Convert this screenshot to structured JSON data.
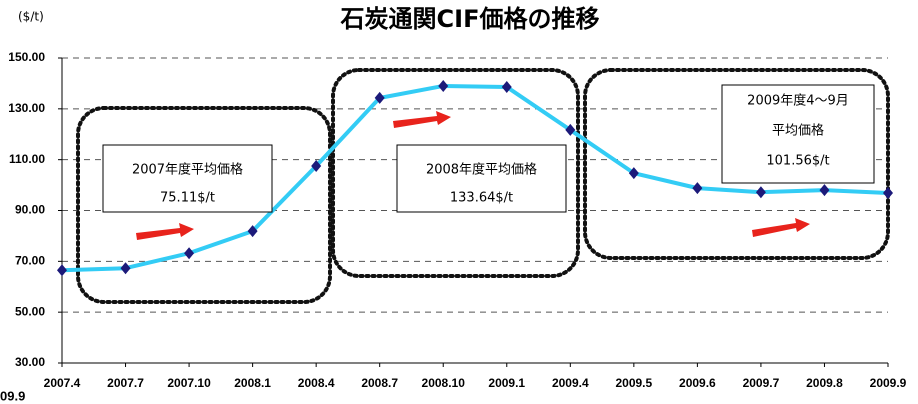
{
  "chart_data": {
    "type": "line",
    "title": "石炭通関CIF価格の推移",
    "y_unit": "($/t)",
    "categories": [
      "2007.4",
      "2007.7",
      "2007.10",
      "2008.1",
      "2008.4",
      "2008.7",
      "2008.10",
      "2009.1",
      "2009.4",
      "2009.5",
      "2009.6",
      "2009.7",
      "2009.8",
      "2009.9"
    ],
    "series": [
      {
        "name": "CIF",
        "color": "#33ccf5",
        "marker_color": "#1c1a7a",
        "values": [
          66.5,
          67.3,
          73.2,
          81.9,
          107.5,
          134.3,
          139.0,
          138.6,
          121.7,
          104.7,
          98.8,
          97.2,
          98.0,
          96.9
        ]
      }
    ],
    "ylim": [
      30,
      150
    ],
    "yticks": [
      {
        "value": 30,
        "label": "30.00"
      },
      {
        "value": 50,
        "label": "50.00"
      },
      {
        "value": 70,
        "label": "70.00"
      },
      {
        "value": 90,
        "label": "90.00"
      },
      {
        "value": 110,
        "label": "110.00"
      },
      {
        "value": 130,
        "label": "130.00"
      },
      {
        "value": 150,
        "label": "150.00"
      }
    ],
    "grid": true,
    "annotations": [
      {
        "lines": [
          "2007年度平均価格",
          "75.11$/t"
        ]
      },
      {
        "lines": [
          "2008年度平均価格",
          "133.64$/t"
        ]
      },
      {
        "lines": [
          "2009年度4～9月",
          "平均価格",
          "101.56$/t"
        ]
      },
      {
        "lines": [
          "09.9"
        ]
      }
    ]
  }
}
